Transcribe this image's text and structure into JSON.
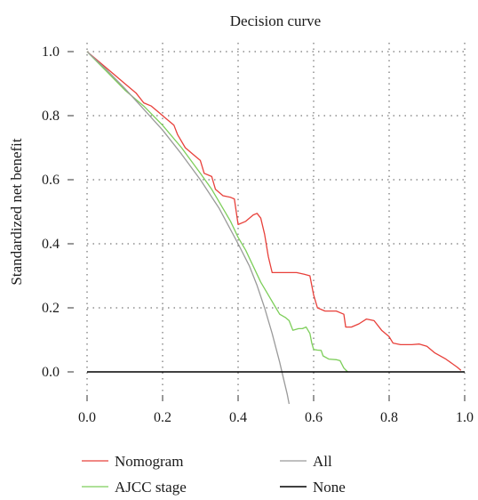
{
  "chart_data": {
    "type": "line",
    "title": "Decision curve",
    "xlabel": "",
    "ylabel": "Standardized net benefit",
    "xlim": [
      0.0,
      1.0
    ],
    "ylim": [
      -0.1,
      1.05
    ],
    "x_ticks": [
      "0.0",
      "0.2",
      "0.4",
      "0.6",
      "0.8",
      "1.0"
    ],
    "y_ticks": [
      "0.0",
      "0.2",
      "0.4",
      "0.6",
      "0.8",
      "1.0"
    ],
    "grid": true,
    "grid_style": "dotted",
    "legend_position": "bottom",
    "series": [
      {
        "name": "Nomogram",
        "color": "#e8403a",
        "points": [
          [
            0.0,
            1.0
          ],
          [
            0.05,
            0.95
          ],
          [
            0.1,
            0.9
          ],
          [
            0.13,
            0.87
          ],
          [
            0.15,
            0.84
          ],
          [
            0.17,
            0.83
          ],
          [
            0.19,
            0.81
          ],
          [
            0.21,
            0.79
          ],
          [
            0.23,
            0.77
          ],
          [
            0.24,
            0.74
          ],
          [
            0.26,
            0.7
          ],
          [
            0.28,
            0.68
          ],
          [
            0.3,
            0.66
          ],
          [
            0.31,
            0.62
          ],
          [
            0.33,
            0.61
          ],
          [
            0.34,
            0.57
          ],
          [
            0.36,
            0.55
          ],
          [
            0.38,
            0.545
          ],
          [
            0.39,
            0.54
          ],
          [
            0.4,
            0.46
          ],
          [
            0.42,
            0.47
          ],
          [
            0.44,
            0.49
          ],
          [
            0.45,
            0.495
          ],
          [
            0.46,
            0.48
          ],
          [
            0.47,
            0.43
          ],
          [
            0.48,
            0.36
          ],
          [
            0.49,
            0.31
          ],
          [
            0.51,
            0.31
          ],
          [
            0.53,
            0.31
          ],
          [
            0.555,
            0.31
          ],
          [
            0.575,
            0.305
          ],
          [
            0.59,
            0.3
          ],
          [
            0.6,
            0.24
          ],
          [
            0.61,
            0.2
          ],
          [
            0.63,
            0.19
          ],
          [
            0.66,
            0.19
          ],
          [
            0.68,
            0.18
          ],
          [
            0.685,
            0.14
          ],
          [
            0.7,
            0.14
          ],
          [
            0.72,
            0.15
          ],
          [
            0.74,
            0.165
          ],
          [
            0.76,
            0.16
          ],
          [
            0.78,
            0.13
          ],
          [
            0.8,
            0.11
          ],
          [
            0.81,
            0.09
          ],
          [
            0.83,
            0.085
          ],
          [
            0.86,
            0.085
          ],
          [
            0.88,
            0.087
          ],
          [
            0.9,
            0.08
          ],
          [
            0.92,
            0.06
          ],
          [
            0.95,
            0.04
          ],
          [
            0.98,
            0.015
          ],
          [
            0.99,
            0.005
          ]
        ]
      },
      {
        "name": "AJCC stage",
        "color": "#7dce5a",
        "points": [
          [
            0.0,
            1.0
          ],
          [
            0.05,
            0.94
          ],
          [
            0.1,
            0.88
          ],
          [
            0.15,
            0.83
          ],
          [
            0.2,
            0.77
          ],
          [
            0.25,
            0.7
          ],
          [
            0.3,
            0.62
          ],
          [
            0.33,
            0.57
          ],
          [
            0.35,
            0.53
          ],
          [
            0.38,
            0.47
          ],
          [
            0.4,
            0.42
          ],
          [
            0.42,
            0.38
          ],
          [
            0.44,
            0.33
          ],
          [
            0.46,
            0.28
          ],
          [
            0.48,
            0.24
          ],
          [
            0.5,
            0.2
          ],
          [
            0.51,
            0.18
          ],
          [
            0.525,
            0.17
          ],
          [
            0.535,
            0.16
          ],
          [
            0.545,
            0.13
          ],
          [
            0.56,
            0.135
          ],
          [
            0.57,
            0.135
          ],
          [
            0.58,
            0.14
          ],
          [
            0.59,
            0.12
          ],
          [
            0.595,
            0.09
          ],
          [
            0.6,
            0.07
          ],
          [
            0.61,
            0.068
          ],
          [
            0.62,
            0.067
          ],
          [
            0.625,
            0.05
          ],
          [
            0.64,
            0.04
          ],
          [
            0.66,
            0.038
          ],
          [
            0.67,
            0.035
          ],
          [
            0.68,
            0.012
          ],
          [
            0.69,
            0.0
          ]
        ]
      },
      {
        "name": "All",
        "color": "#9a9a9a",
        "points": [
          [
            0.0,
            1.0
          ],
          [
            0.05,
            0.945
          ],
          [
            0.1,
            0.885
          ],
          [
            0.15,
            0.82
          ],
          [
            0.2,
            0.755
          ],
          [
            0.25,
            0.68
          ],
          [
            0.3,
            0.6
          ],
          [
            0.35,
            0.51
          ],
          [
            0.4,
            0.4
          ],
          [
            0.43,
            0.33
          ],
          [
            0.45,
            0.27
          ],
          [
            0.47,
            0.2
          ],
          [
            0.49,
            0.12
          ],
          [
            0.51,
            0.03
          ],
          [
            0.52,
            -0.02
          ],
          [
            0.53,
            -0.07
          ],
          [
            0.535,
            -0.1
          ]
        ]
      },
      {
        "name": "None",
        "color": "#000000",
        "points": [
          [
            0.0,
            0.0
          ],
          [
            1.0,
            0.0
          ]
        ]
      }
    ]
  }
}
